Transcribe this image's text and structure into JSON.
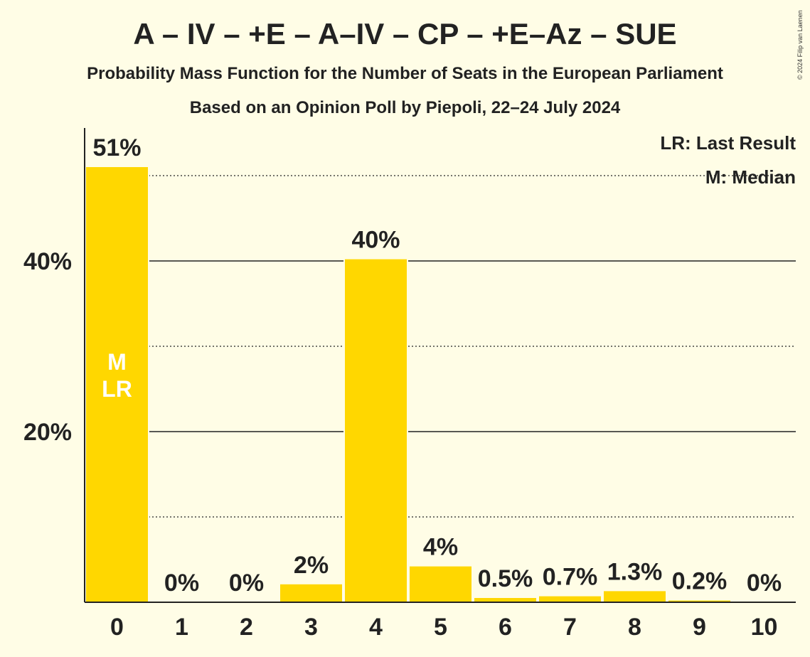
{
  "title": "A – IV – +E – A–IV – CP – +E–Az – SUE",
  "subtitle": "Probability Mass Function for the Number of Seats in the European Parliament",
  "source": "Based on an Opinion Poll by Piepoli, 22–24 July 2024",
  "copyright": "© 2024 Filip van Laenen",
  "legend": {
    "last_result": "LR: Last Result",
    "median": "M: Median"
  },
  "colors": {
    "bar": "#ffd700",
    "background": "#fffde6",
    "text": "#222222",
    "marker_text": "#ffffff"
  },
  "chart_data": {
    "type": "bar",
    "categories": [
      "0",
      "1",
      "2",
      "3",
      "4",
      "5",
      "6",
      "7",
      "8",
      "9",
      "10"
    ],
    "values": [
      51,
      0,
      0,
      2.1,
      40.2,
      4.2,
      0.5,
      0.7,
      1.3,
      0.2,
      0
    ],
    "data_labels": [
      "51%",
      "0%",
      "0%",
      "2%",
      "40%",
      "4%",
      "0.5%",
      "0.7%",
      "1.3%",
      "0.2%",
      "0%"
    ],
    "ylim": [
      0,
      55
    ],
    "yticks": [
      20,
      40
    ],
    "ytick_labels": [
      "20%",
      "40%"
    ],
    "minor_gridlines": [
      10,
      30,
      50
    ],
    "median_category": "0",
    "last_result_category": "0",
    "bar_markers": {
      "median": "M",
      "last_result": "LR"
    },
    "grid": true,
    "legend_position": "top-right"
  }
}
